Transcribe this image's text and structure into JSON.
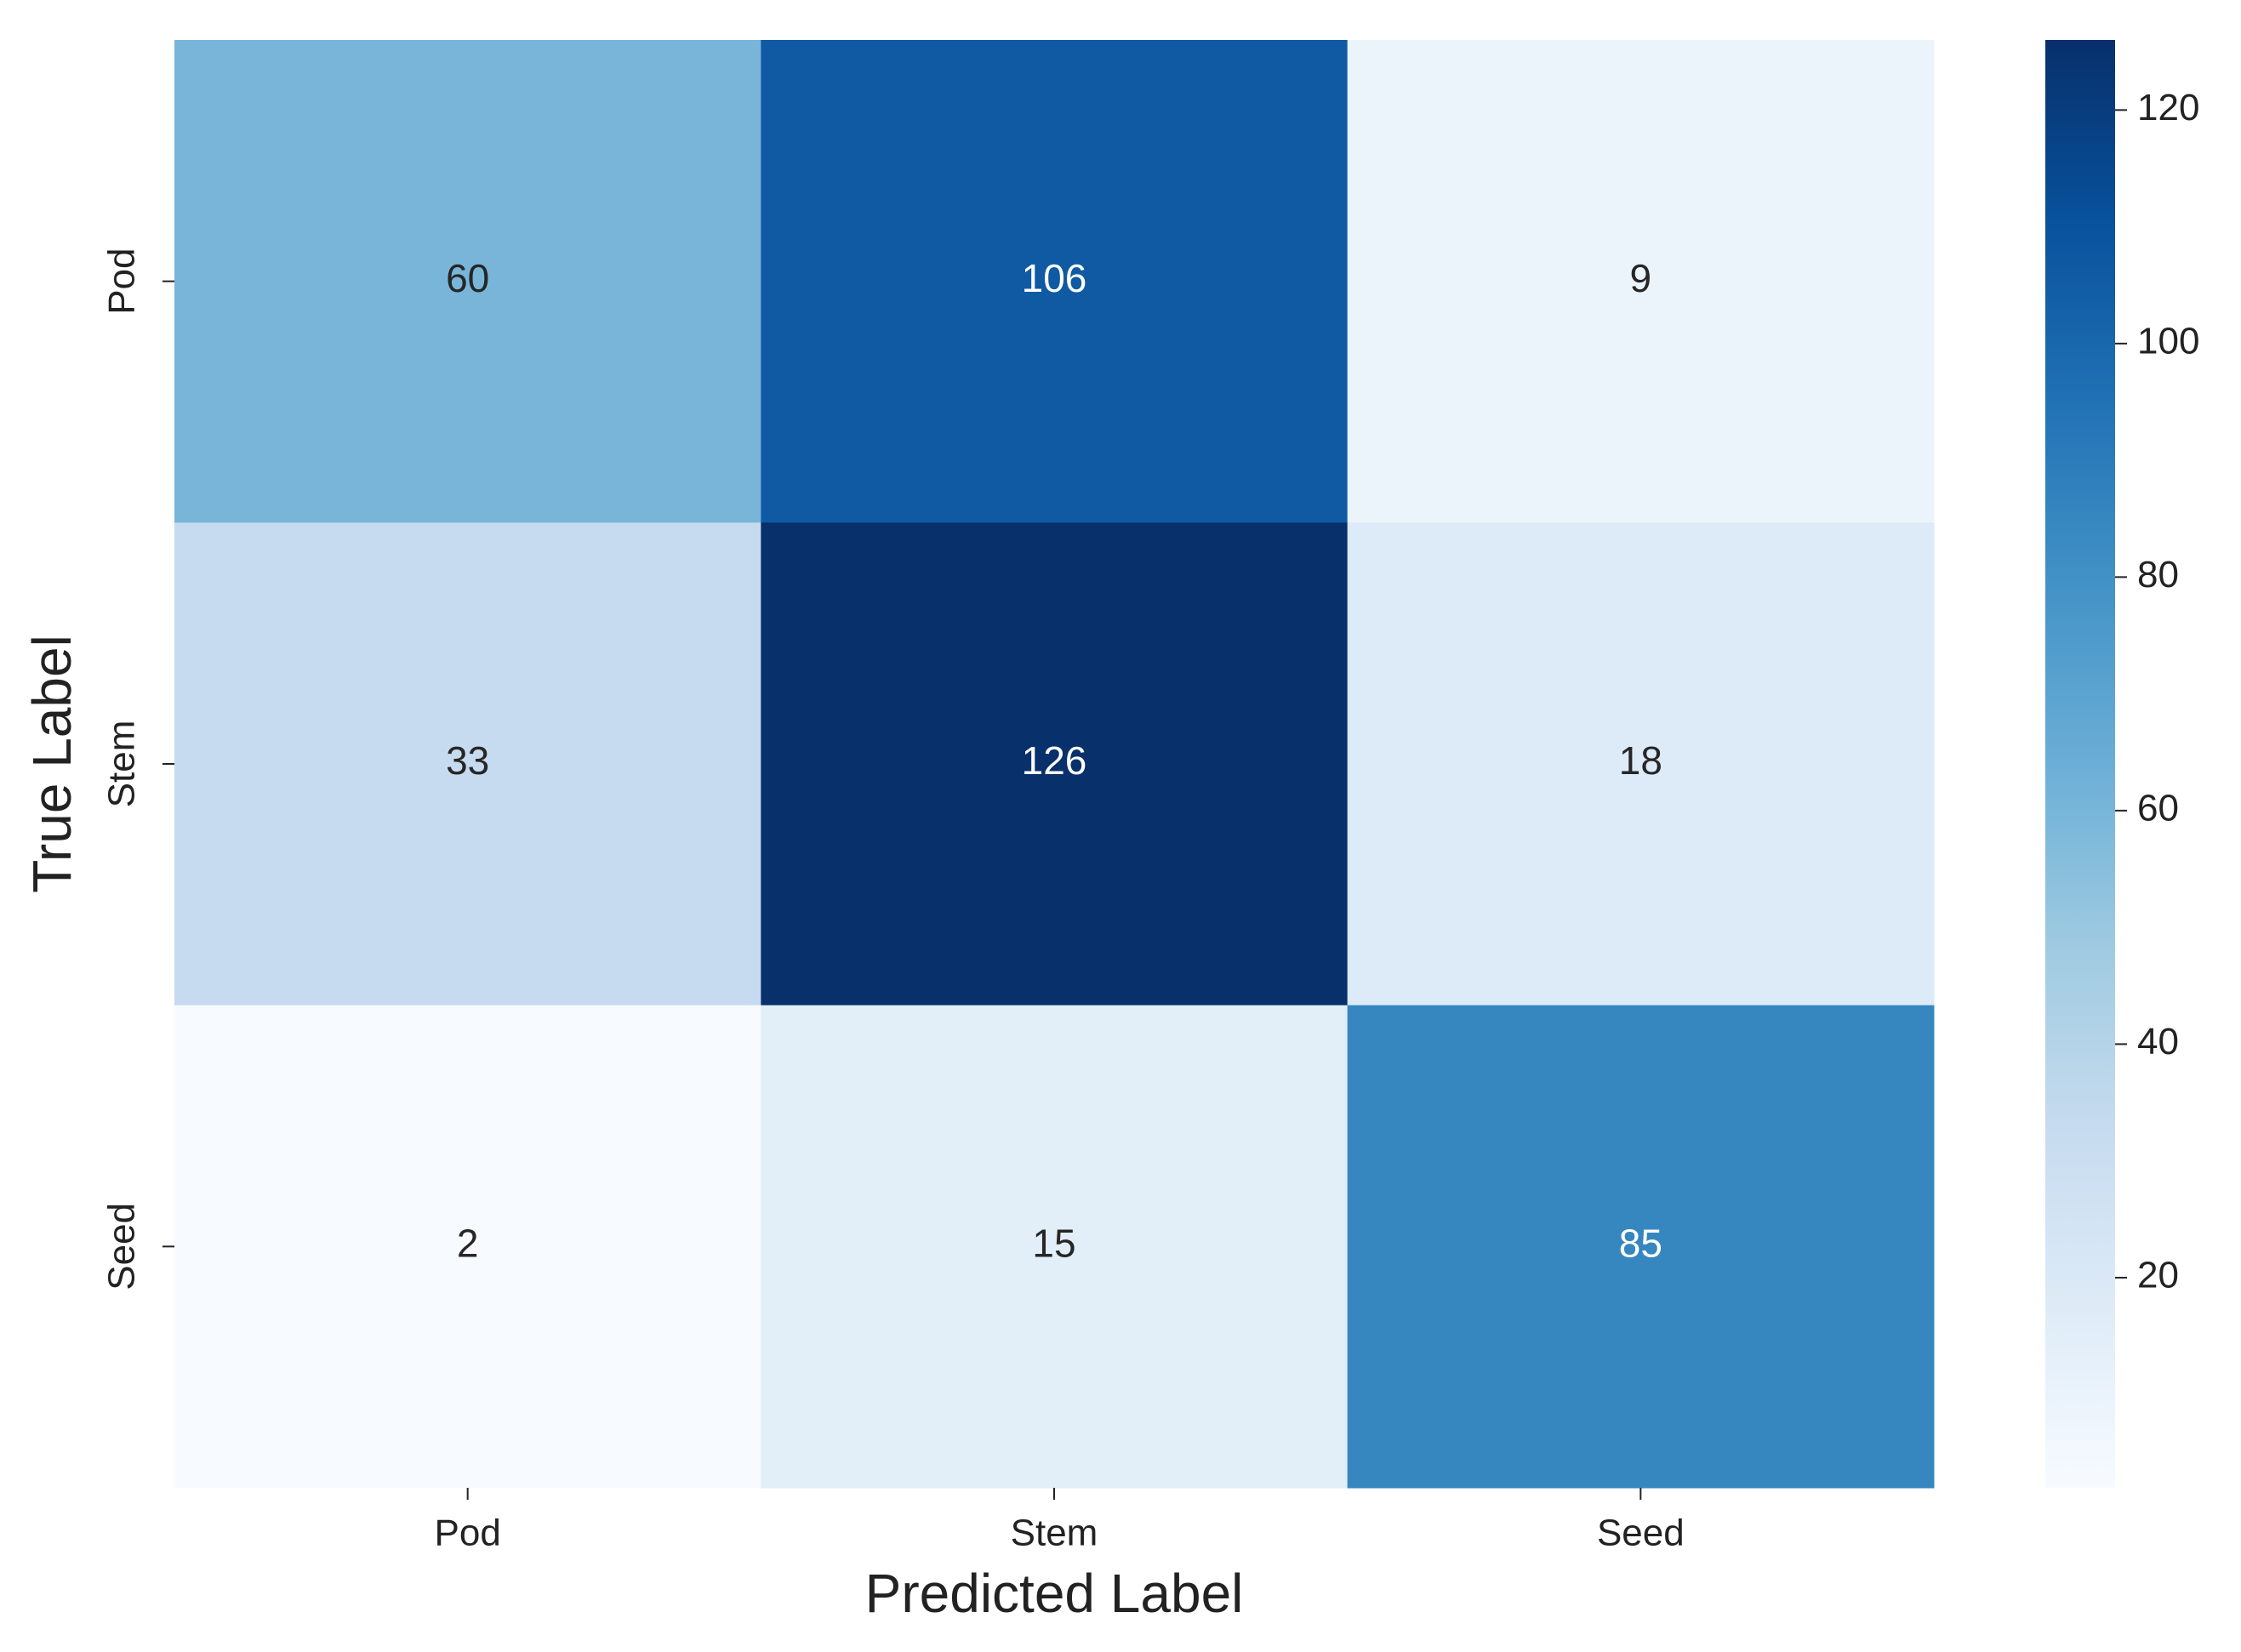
{
  "chart_data": {
    "type": "heatmap",
    "x": [
      "Pod",
      "Stem",
      "Seed"
    ],
    "y": [
      "Pod",
      "Stem",
      "Seed"
    ],
    "values": [
      [
        60,
        106,
        9
      ],
      [
        33,
        126,
        18
      ],
      [
        2,
        15,
        85
      ]
    ],
    "xlabel": "Predicted Label",
    "ylabel": "True Label",
    "colormap": "Blues",
    "zlim": [
      2,
      126
    ],
    "zticks": [
      20,
      40,
      60,
      80,
      100,
      120
    ]
  }
}
